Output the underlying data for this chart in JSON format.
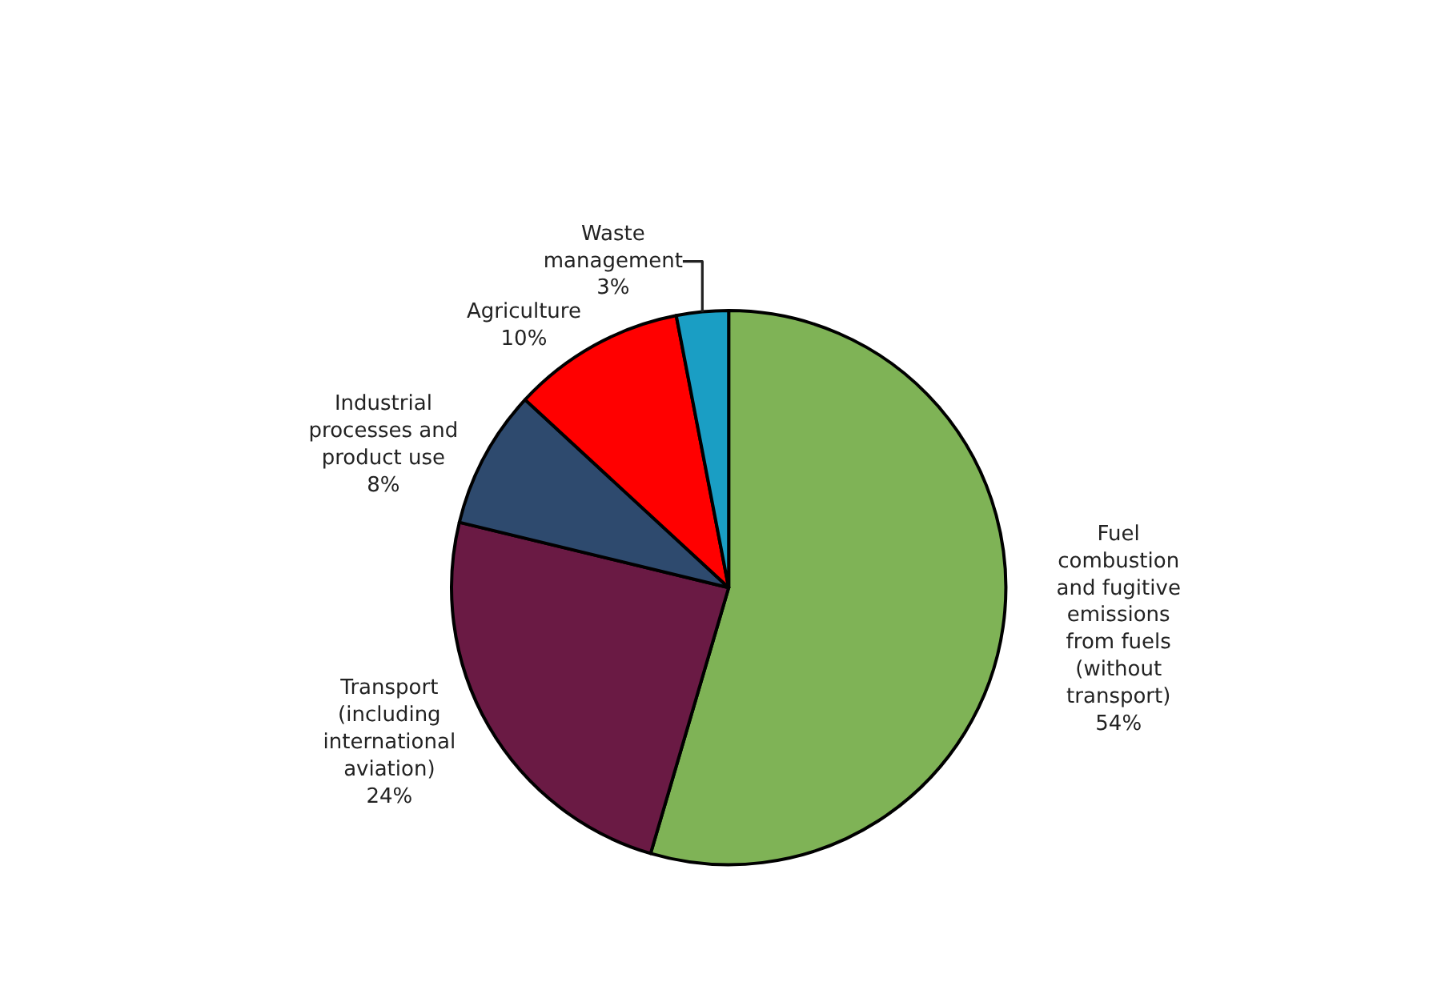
{
  "chart_data": {
    "type": "pie",
    "categories": [
      "Fuel\ncombustion\nand fugitive\nemissions\nfrom fuels\n(without\ntransport)",
      "Transport\n(including\ninternational\naviation)",
      "Industrial\nprocesses and\nproduct use",
      "Agriculture",
      "Waste\nmanagement"
    ],
    "values": [
      54,
      24,
      8,
      10,
      3
    ],
    "value_labels": [
      "54%",
      "24%",
      "8%",
      "10%",
      "3%"
    ],
    "colors": [
      "#7fb356",
      "#6a1a44",
      "#2e4a6e",
      "#ff0000",
      "#1a9ec4"
    ],
    "legend": false
  }
}
